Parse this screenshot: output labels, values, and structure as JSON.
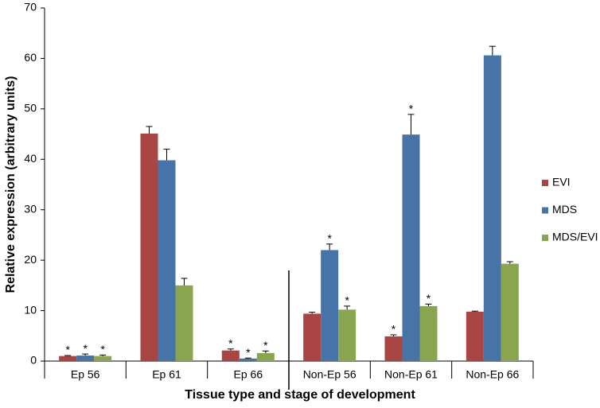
{
  "chart_data": {
    "type": "bar",
    "x_label": "Tissue type and stage of development",
    "y_label": "Relative expression (arbitrary units)",
    "categories": [
      "Ep 56",
      "Ep 61",
      "Ep 66",
      "Non-Ep 56",
      "Non-Ep 61",
      "Non-Ep 66"
    ],
    "series": [
      {
        "name": "EVI",
        "color": "#a94643",
        "values": [
          1.0,
          45.1,
          2.1,
          9.4,
          4.9,
          9.8
        ],
        "errors": [
          0.1,
          1.4,
          0.3,
          0.3,
          0.3,
          0.1
        ],
        "annotations": [
          "*",
          null,
          "*",
          null,
          "*",
          null
        ]
      },
      {
        "name": "MDS",
        "color": "#4674a8",
        "values": [
          1.1,
          39.8,
          0.5,
          22.0,
          44.9,
          60.6
        ],
        "errors": [
          0.3,
          2.2,
          0.1,
          1.2,
          4.0,
          1.8
        ],
        "annotations": [
          "*",
          null,
          "*",
          "*",
          "*",
          null
        ]
      },
      {
        "name": "MDS/EVI",
        "color": "#89a54e",
        "values": [
          1.0,
          15.0,
          1.6,
          10.2,
          10.9,
          19.3
        ],
        "errors": [
          0.2,
          1.4,
          0.4,
          0.7,
          0.4,
          0.4
        ],
        "annotations": [
          "*",
          null,
          "*",
          "*",
          "*",
          null
        ]
      }
    ],
    "ylim": [
      0,
      70
    ],
    "yticks": [
      0,
      10,
      20,
      30,
      40,
      50,
      60,
      70
    ],
    "grid": false,
    "legend": "right"
  }
}
